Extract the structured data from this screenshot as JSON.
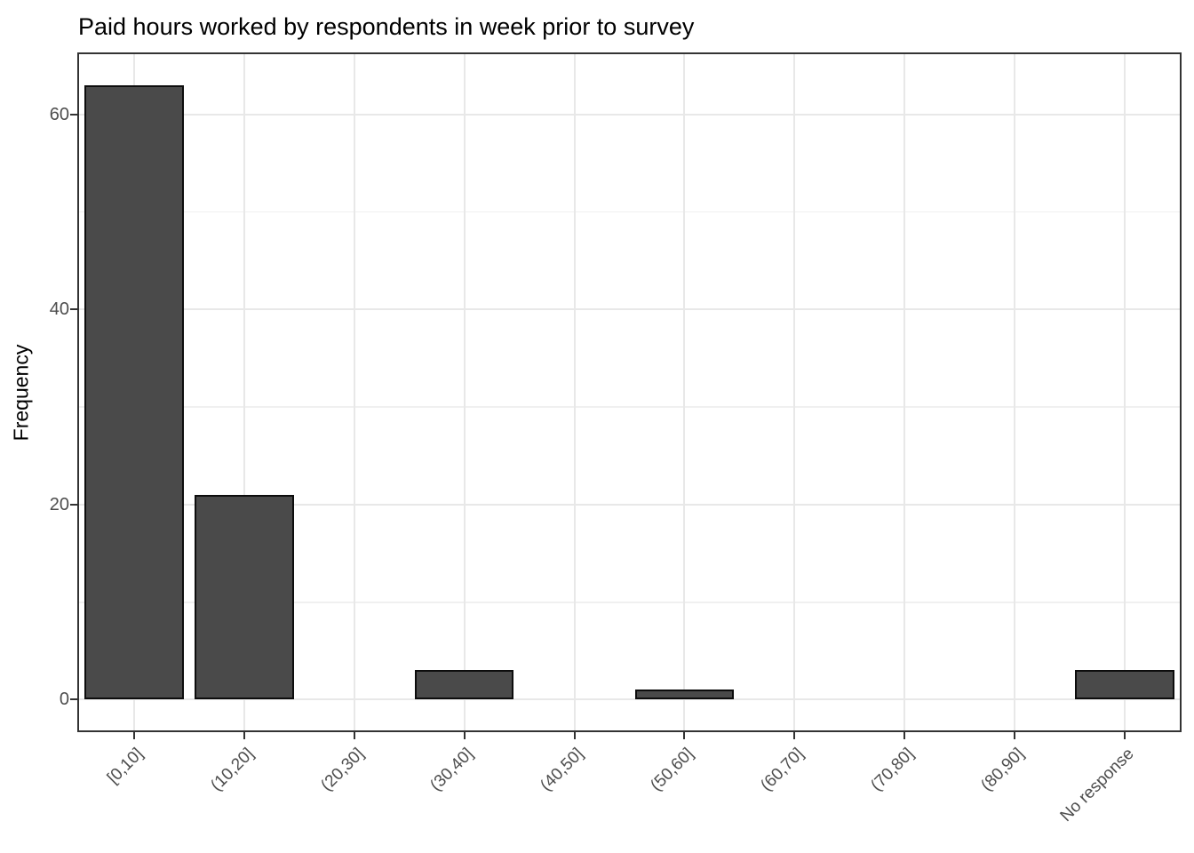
{
  "chart_data": {
    "type": "bar",
    "title": "Paid hours worked by respondents in week prior to survey",
    "xlabel": "",
    "ylabel": "Frequency",
    "categories": [
      "[0,10]",
      "(10,20]",
      "(20,30]",
      "(30,40]",
      "(40,50]",
      "(50,60]",
      "(60,70]",
      "(70,80]",
      "(80,90]",
      "No response"
    ],
    "values": [
      63,
      21,
      0,
      3,
      0,
      1,
      0,
      0,
      0,
      3
    ],
    "y_major_ticks": [
      0,
      20,
      40,
      60
    ],
    "y_minor_ticks": [
      10,
      30,
      50
    ],
    "ylim": [
      -3.15,
      66.15
    ],
    "bar_width_fraction": 0.9,
    "x_label_angle_deg": 45,
    "grid": "horizontal major+minor, vertical major at categories",
    "legend": "none",
    "colors": {
      "bar_fill": "#4a4a4a",
      "bar_stroke": "#0d0d0d",
      "grid_major": "#e8e8e8",
      "grid_minor": "#f0f0f0",
      "panel_border": "#333333",
      "tick": "#333333",
      "tick_label": "#4d4d4d",
      "title_text": "#000000",
      "background": "#ffffff"
    }
  }
}
